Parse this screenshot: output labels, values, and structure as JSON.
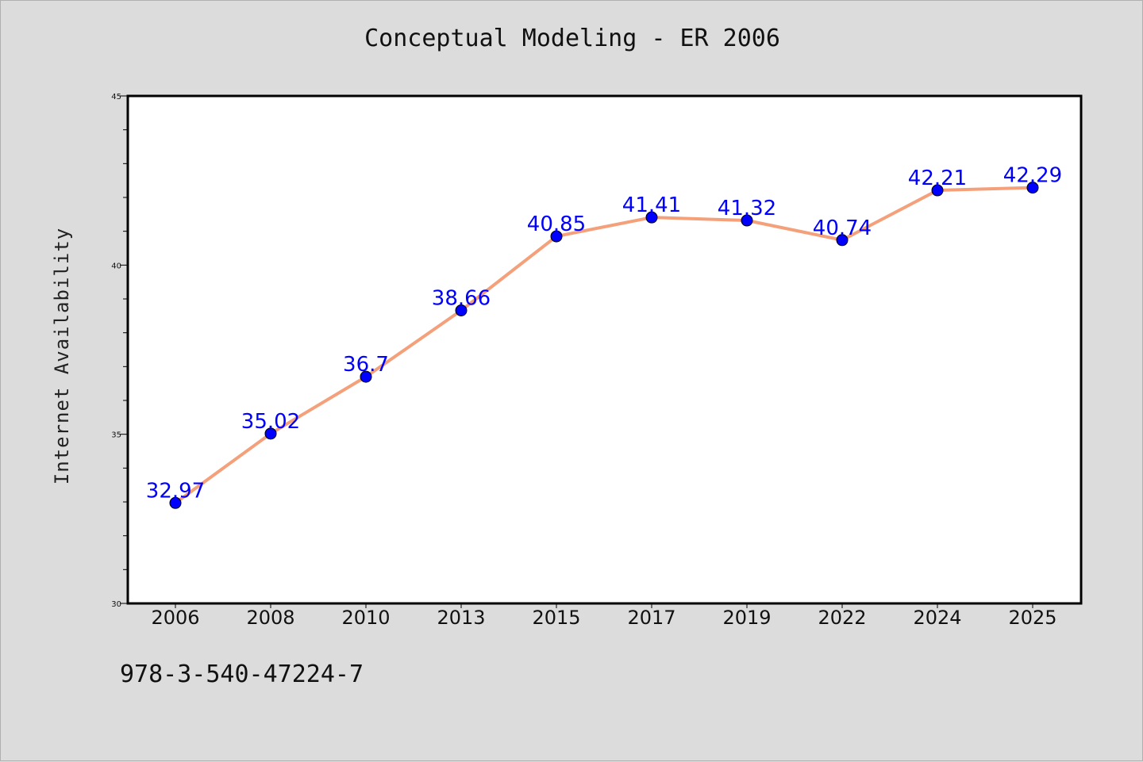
{
  "page": {
    "title": "Conceptual Modeling - ER 2006",
    "footer_code": "978-3-540-47224-7"
  },
  "chart_data": {
    "type": "line",
    "title": "Conceptual Modeling - ER 2006",
    "xlabel": "",
    "ylabel": "Internet Availability",
    "categories": [
      "2006",
      "2008",
      "2010",
      "2013",
      "2015",
      "2017",
      "2019",
      "2022",
      "2024",
      "2025"
    ],
    "series": [
      {
        "values": [
          32.97,
          35.02,
          36.7,
          38.66,
          40.85,
          41.41,
          41.32,
          40.74,
          42.21,
          42.29
        ],
        "data_labels": [
          "32.97",
          "35.02",
          "36.7",
          "38.66",
          "40.85",
          "41.41",
          "41.32",
          "40.74",
          "42.21",
          "42.29"
        ],
        "line_color": "#f4a07a",
        "marker_color": "#0000ff"
      }
    ],
    "ylim": [
      30,
      45
    ],
    "yticks": [
      30,
      35,
      40,
      45
    ],
    "ytick_labels": [
      "30",
      "35",
      "40",
      "45"
    ],
    "grid": false,
    "legend": "none",
    "colors": {
      "plot_background": "#ffffff",
      "page_background": "#dcdcdc",
      "label_color": "#0000ff"
    }
  }
}
